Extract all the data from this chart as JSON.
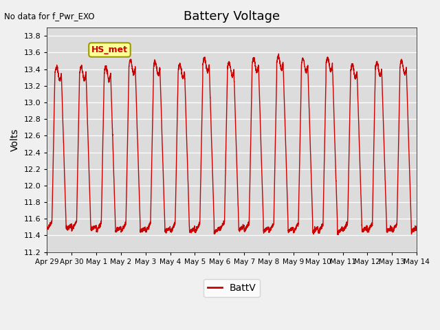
{
  "title": "Battery Voltage",
  "no_data_label": "No data for f_Pwr_EXO",
  "ylabel": "Volts",
  "legend_label": "BattV",
  "legend_color": "#cc0000",
  "line_color": "#cc0000",
  "background_color": "#dcdcdc",
  "fig_background_color": "#f0f0f0",
  "ylim": [
    11.2,
    13.9
  ],
  "yticks": [
    11.2,
    11.4,
    11.6,
    11.8,
    12.0,
    12.2,
    12.4,
    12.6,
    12.8,
    13.0,
    13.2,
    13.4,
    13.6,
    13.8
  ],
  "xtick_labels": [
    "Apr 29",
    "Apr 30",
    "May 1",
    "May 2",
    "May 3",
    "May 4",
    "May 5",
    "May 6",
    "May 7",
    "May 8",
    "May 9",
    "May 10",
    "May 11",
    "May 12",
    "May 13",
    "May 14"
  ],
  "hs_met_box_color": "#ffff99",
  "hs_met_box_edge": "#999900",
  "hs_met_text": "HS_met",
  "hs_met_text_color": "#cc0000"
}
